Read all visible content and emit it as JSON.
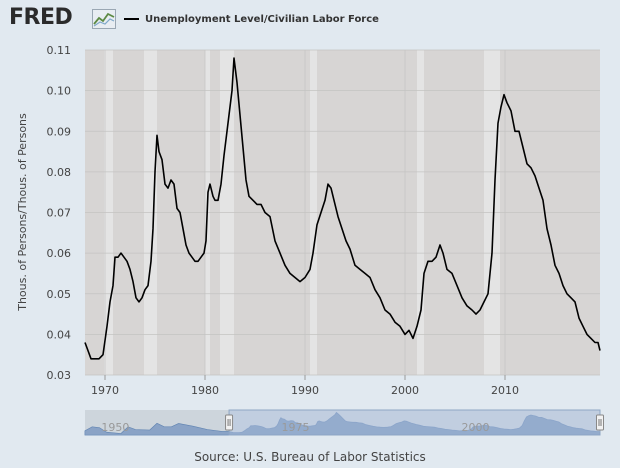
{
  "header": {
    "logo_text": "FRED",
    "logo_icon": "line-chart-icon",
    "legend_label": "Unemployment Level/Civilian Labor Force"
  },
  "footer": {
    "source": "Source: U.S. Bureau of Labor Statistics"
  },
  "navigator": {
    "labels": [
      "1950",
      "1975",
      "2000"
    ],
    "range": [
      1968,
      2019.5
    ]
  },
  "colors": {
    "series": "#000000",
    "plot_bg": "#d7d5d4",
    "recession": "#e4e4e4",
    "page_bg": "#e1e9f0",
    "navigator_fill": "#8aa4c6",
    "navigator_sel": "#b8c9e3"
  },
  "chart_data": {
    "type": "line",
    "title": "",
    "xlabel": "",
    "ylabel": "Thous. of Persons/Thous. of Persons",
    "xlim": [
      1968,
      2019.5
    ],
    "ylim": [
      0.03,
      0.11
    ],
    "y_ticks": [
      0.03,
      0.04,
      0.05,
      0.06,
      0.07,
      0.08,
      0.09,
      0.1,
      0.11
    ],
    "y_tick_labels": [
      "0.03",
      "0.04",
      "0.05",
      "0.06",
      "0.07",
      "0.08",
      "0.09",
      "0.10",
      "0.11"
    ],
    "x_ticks": [
      1970,
      1980,
      1990,
      2000,
      2010
    ],
    "x_tick_labels": [
      "1970",
      "1980",
      "1990",
      "2000",
      "2010"
    ],
    "grid": true,
    "recessions": [
      [
        1969.9,
        1970.8
      ],
      [
        1973.9,
        1975.2
      ],
      [
        1980.0,
        1980.5
      ],
      [
        1981.5,
        1982.9
      ],
      [
        1990.5,
        1991.2
      ],
      [
        2001.2,
        2001.9
      ],
      [
        2007.9,
        2009.5
      ]
    ],
    "series": [
      {
        "name": "Unemployment Level/Civilian Labor Force",
        "x": [
          1968.0,
          1968.3,
          1968.6,
          1969.0,
          1969.4,
          1969.8,
          1970.2,
          1970.5,
          1970.8,
          1971.0,
          1971.3,
          1971.6,
          1971.9,
          1972.2,
          1972.5,
          1972.8,
          1973.1,
          1973.4,
          1973.7,
          1974.0,
          1974.3,
          1974.6,
          1974.8,
          1975.0,
          1975.2,
          1975.4,
          1975.7,
          1976.0,
          1976.3,
          1976.6,
          1976.9,
          1977.2,
          1977.5,
          1977.8,
          1978.1,
          1978.4,
          1978.7,
          1979.0,
          1979.3,
          1979.6,
          1979.9,
          1980.1,
          1980.3,
          1980.5,
          1980.8,
          1981.0,
          1981.3,
          1981.6,
          1981.9,
          1982.2,
          1982.5,
          1982.7,
          1982.9,
          1983.2,
          1983.5,
          1983.8,
          1984.1,
          1984.4,
          1984.8,
          1985.2,
          1985.6,
          1986.0,
          1986.5,
          1987.0,
          1987.5,
          1988.0,
          1988.5,
          1989.0,
          1989.5,
          1990.0,
          1990.5,
          1990.8,
          1991.2,
          1991.6,
          1992.0,
          1992.3,
          1992.6,
          1992.9,
          1993.3,
          1993.7,
          1994.1,
          1994.5,
          1995.0,
          1995.5,
          1996.0,
          1996.5,
          1997.0,
          1997.5,
          1998.0,
          1998.5,
          1999.0,
          1999.5,
          2000.0,
          2000.4,
          2000.8,
          2001.2,
          2001.6,
          2001.9,
          2002.3,
          2002.7,
          2003.1,
          2003.5,
          2003.8,
          2004.2,
          2004.7,
          2005.2,
          2005.7,
          2006.2,
          2006.7,
          2007.1,
          2007.5,
          2007.9,
          2008.3,
          2008.7,
          2009.0,
          2009.3,
          2009.6,
          2009.9,
          2010.2,
          2010.6,
          2011.0,
          2011.4,
          2011.8,
          2012.2,
          2012.6,
          2013.0,
          2013.4,
          2013.8,
          2014.2,
          2014.6,
          2015.0,
          2015.4,
          2015.8,
          2016.2,
          2016.6,
          2017.0,
          2017.4,
          2017.8,
          2018.2,
          2018.6,
          2019.0,
          2019.3,
          2019.5
        ],
        "values": [
          0.038,
          0.036,
          0.034,
          0.034,
          0.034,
          0.035,
          0.042,
          0.048,
          0.052,
          0.059,
          0.059,
          0.06,
          0.059,
          0.058,
          0.056,
          0.053,
          0.049,
          0.048,
          0.049,
          0.051,
          0.052,
          0.058,
          0.066,
          0.08,
          0.089,
          0.085,
          0.083,
          0.077,
          0.076,
          0.078,
          0.077,
          0.071,
          0.07,
          0.066,
          0.062,
          0.06,
          0.059,
          0.058,
          0.058,
          0.059,
          0.06,
          0.063,
          0.075,
          0.077,
          0.074,
          0.073,
          0.073,
          0.077,
          0.084,
          0.09,
          0.096,
          0.1,
          0.108,
          0.102,
          0.094,
          0.086,
          0.078,
          0.074,
          0.073,
          0.072,
          0.072,
          0.07,
          0.069,
          0.063,
          0.06,
          0.057,
          0.055,
          0.054,
          0.053,
          0.054,
          0.056,
          0.06,
          0.067,
          0.07,
          0.073,
          0.077,
          0.076,
          0.073,
          0.069,
          0.066,
          0.063,
          0.061,
          0.057,
          0.056,
          0.055,
          0.054,
          0.051,
          0.049,
          0.046,
          0.045,
          0.043,
          0.042,
          0.04,
          0.041,
          0.039,
          0.042,
          0.046,
          0.055,
          0.058,
          0.058,
          0.059,
          0.062,
          0.06,
          0.056,
          0.055,
          0.052,
          0.049,
          0.047,
          0.046,
          0.045,
          0.046,
          0.048,
          0.05,
          0.06,
          0.078,
          0.092,
          0.096,
          0.099,
          0.097,
          0.095,
          0.09,
          0.09,
          0.086,
          0.082,
          0.081,
          0.079,
          0.076,
          0.073,
          0.066,
          0.062,
          0.057,
          0.055,
          0.052,
          0.05,
          0.049,
          0.048,
          0.044,
          0.042,
          0.04,
          0.039,
          0.038,
          0.038,
          0.036
        ]
      }
    ]
  }
}
